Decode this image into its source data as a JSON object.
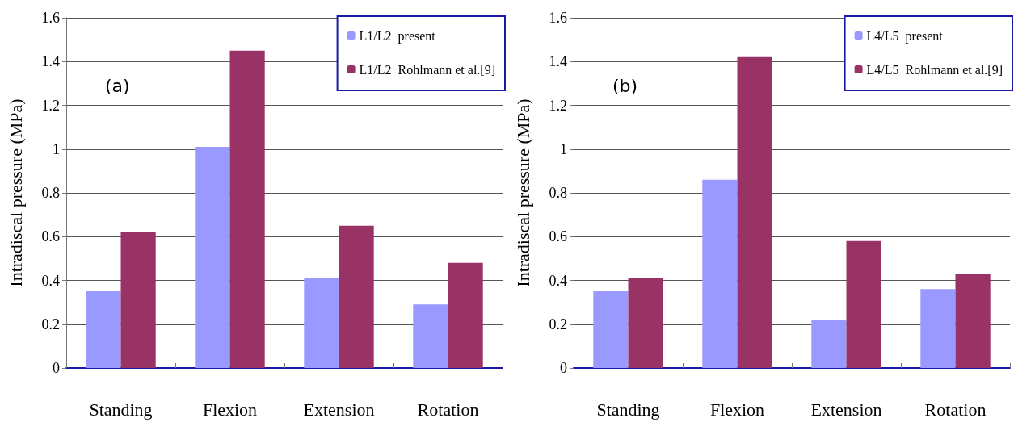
{
  "chart_data": [
    {
      "type": "bar",
      "ylabel": "Intradiscal pressure (MPa)",
      "categories": [
        "Standing",
        "Flexion",
        "Extension",
        "Rotation"
      ],
      "annotations": [
        "(a)"
      ],
      "series": [
        {
          "name": "L1/L2  present",
          "color": "#9999ff",
          "values": [
            0.35,
            1.01,
            0.41,
            0.29
          ]
        },
        {
          "name": "L1/L2  Rohlmann et al.[9]",
          "color": "#993366",
          "values": [
            0.62,
            1.45,
            0.65,
            0.48
          ]
        }
      ],
      "ylim": [
        0,
        1.6
      ],
      "yticks": [
        0,
        0.2,
        0.4,
        0.6,
        0.8,
        1,
        1.2,
        1.4,
        1.6
      ],
      "grid": "y",
      "legend": "top right"
    },
    {
      "type": "bar",
      "ylabel": "Intradiscal pressure (MPa)",
      "categories": [
        "Standing",
        "Flexion",
        "Extension",
        "Rotation"
      ],
      "annotations": [
        "(b)"
      ],
      "series": [
        {
          "name": "L4/L5  present",
          "color": "#9999ff",
          "values": [
            0.35,
            0.86,
            0.22,
            0.36
          ]
        },
        {
          "name": "L4/L5  Rohlmann et al.[9]",
          "color": "#993366",
          "values": [
            0.41,
            1.42,
            0.58,
            0.43
          ]
        }
      ],
      "ylim": [
        0,
        1.6
      ],
      "yticks": [
        0,
        0.2,
        0.4,
        0.6,
        0.8,
        1,
        1.2,
        1.4,
        1.6
      ],
      "grid": "y",
      "legend": "top right"
    }
  ]
}
